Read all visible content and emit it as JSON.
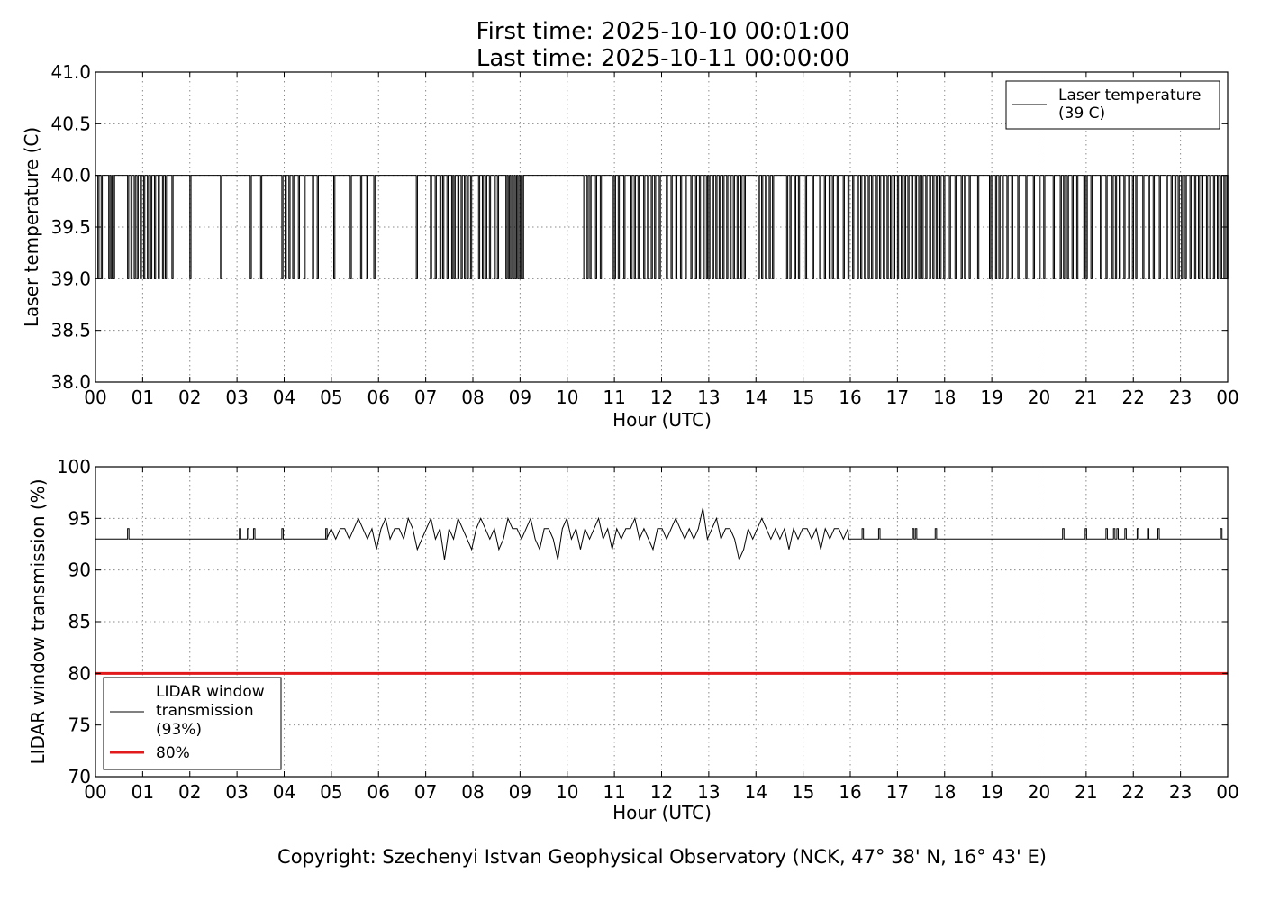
{
  "title": {
    "line1": "First time: 2025-10-10 00:01:00",
    "line2": "Last time: 2025-10-11 00:00:00"
  },
  "copyright": "Copyright: Szechenyi Istvan Geophysical Observatory (NCK, 47° 38' N, 16° 43' E)",
  "chart_data": [
    {
      "type": "line",
      "xlabel": "Hour (UTC)",
      "ylabel": "Laser temperature (C)",
      "xlim": [
        "2025-10-10 00:00",
        "2025-10-11 00:00"
      ],
      "ylim": [
        38.0,
        41.0
      ],
      "x_tick_labels": [
        "00",
        "01",
        "02",
        "03",
        "04",
        "05",
        "06",
        "07",
        "08",
        "09",
        "10",
        "11",
        "12",
        "13",
        "14",
        "15",
        "16",
        "17",
        "18",
        "19",
        "20",
        "21",
        "22",
        "23",
        "00"
      ],
      "y_tick_labels": [
        "38.0",
        "38.5",
        "39.0",
        "39.5",
        "40.0",
        "40.5",
        "41.0"
      ],
      "grid": true,
      "legend": "top-right",
      "series": [
        {
          "name": "Laser temperature\n(39 C)",
          "color": "#000000",
          "time_start": "2025-10-10 00:01",
          "time_end": "2025-10-11 00:00",
          "step_minutes": 1,
          "levels": [
            39.0,
            40.0
          ],
          "dips_to_39_at_hour": [
            0.05,
            0.12,
            0.28,
            0.33,
            0.38,
            0.68,
            0.75,
            0.82,
            0.88,
            0.95,
            1.02,
            1.1,
            1.17,
            1.25,
            1.33,
            1.42,
            1.48,
            1.62,
            2.0,
            2.65,
            3.28,
            3.5,
            3.95,
            4.02,
            4.1,
            4.18,
            4.3,
            4.42,
            4.6,
            4.7,
            5.05,
            5.4,
            5.62,
            5.75,
            5.9,
            6.8,
            7.1,
            7.2,
            7.3,
            7.36,
            7.45,
            7.55,
            7.6,
            7.68,
            7.75,
            7.82,
            7.88,
            7.95,
            8.12,
            8.2,
            8.27,
            8.35,
            8.45,
            8.52,
            8.7,
            8.75,
            8.8,
            8.85,
            8.9,
            8.95,
            9.0,
            9.05,
            10.35,
            10.42,
            10.48,
            10.6,
            10.7,
            10.95,
            11.0,
            11.08,
            11.2,
            11.35,
            11.42,
            11.5,
            11.62,
            11.7,
            11.78,
            11.85,
            11.95,
            12.1,
            12.2,
            12.3,
            12.4,
            12.5,
            12.62,
            12.72,
            12.8,
            12.88,
            12.95,
            13.0,
            13.08,
            13.15,
            13.22,
            13.3,
            13.38,
            13.45,
            13.52,
            13.6,
            13.68,
            13.75,
            14.05,
            14.12,
            14.2,
            14.28,
            14.35,
            14.65,
            14.72,
            14.82,
            14.9,
            15.05,
            15.2,
            15.35,
            15.45,
            15.55,
            15.62,
            15.72,
            15.85,
            15.95,
            16.05,
            16.15,
            16.22,
            16.3,
            16.38,
            16.45,
            16.55,
            16.62,
            16.7,
            16.78,
            16.85,
            16.92,
            17.0,
            17.08,
            17.15,
            17.22,
            17.3,
            17.38,
            17.45,
            17.52,
            17.6,
            17.68,
            17.75,
            17.82,
            17.9,
            17.98,
            18.1,
            18.22,
            18.35,
            18.42,
            18.52,
            18.7,
            18.95,
            19.0,
            19.08,
            19.15,
            19.22,
            19.32,
            19.42,
            19.55,
            19.72,
            19.88,
            20.0,
            20.1,
            20.3,
            20.45,
            20.52,
            20.6,
            20.7,
            20.8,
            20.95,
            21.0,
            21.1,
            21.3,
            21.42,
            21.55,
            21.62,
            21.7,
            21.8,
            21.9,
            21.98,
            22.05,
            22.2,
            22.32,
            22.42,
            22.55,
            22.7,
            22.8,
            22.88,
            22.95,
            23.02,
            23.1,
            23.2,
            23.3,
            23.38,
            23.45,
            23.55,
            23.62,
            23.7,
            23.78,
            23.85,
            23.92,
            23.98
          ]
        }
      ]
    },
    {
      "type": "line",
      "xlabel": "Hour (UTC)",
      "ylabel": "LIDAR window transmission (%)",
      "xlim": [
        "2025-10-10 00:00",
        "2025-10-11 00:00"
      ],
      "ylim": [
        70,
        100
      ],
      "x_tick_labels": [
        "00",
        "01",
        "02",
        "03",
        "04",
        "05",
        "06",
        "07",
        "08",
        "09",
        "10",
        "11",
        "12",
        "13",
        "14",
        "15",
        "16",
        "17",
        "18",
        "19",
        "20",
        "21",
        "22",
        "23",
        "00"
      ],
      "y_tick_labels": [
        "70",
        "75",
        "80",
        "85",
        "90",
        "95",
        "100"
      ],
      "grid": true,
      "legend": "bottom-left",
      "series": [
        {
          "name": "LIDAR window\ntransmission\n(93%)",
          "color": "#000000",
          "baseline": 93,
          "spikes_to_94_at_hour": [
            0.68,
            3.05,
            3.22,
            3.35,
            3.95,
            4.88,
            16.25,
            16.6,
            17.32,
            17.38,
            17.8,
            20.5,
            20.98,
            21.42,
            21.58,
            21.65,
            21.82,
            22.08,
            22.3,
            22.52,
            23.85
          ],
          "busy_period_hours": [
            4.9,
            15.95
          ],
          "busy_period_values": [
            93,
            94,
            93,
            94,
            94,
            93,
            94,
            95,
            94,
            93,
            94,
            92,
            94,
            95,
            93,
            94,
            94,
            93,
            95,
            94,
            92,
            93,
            94,
            95,
            93,
            94,
            91,
            94,
            93,
            95,
            94,
            93,
            92,
            94,
            95,
            94,
            93,
            94,
            92,
            93,
            95,
            94,
            94,
            93,
            94,
            95,
            93,
            92,
            94,
            94,
            93,
            91,
            94,
            95,
            93,
            94,
            92,
            94,
            93,
            94,
            95,
            93,
            94,
            92,
            94,
            93,
            94,
            94,
            95,
            93,
            94,
            93,
            92,
            94,
            94,
            93,
            94,
            95,
            94,
            93,
            94,
            93,
            94,
            96,
            93,
            94,
            95,
            93,
            94,
            94,
            93,
            91,
            92,
            94,
            93,
            94,
            95,
            94,
            93,
            94,
            93,
            94,
            92,
            94,
            93,
            94,
            94,
            93,
            94,
            92,
            94,
            93,
            94,
            94,
            93,
            94
          ]
        },
        {
          "name": "80%",
          "color": "#e31a1c",
          "constant": 80
        }
      ]
    }
  ]
}
